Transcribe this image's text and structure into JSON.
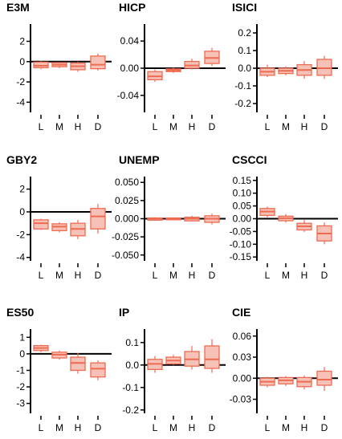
{
  "colors": {
    "box_fill": "#f6c2b8",
    "box_edge": "#ee6b50",
    "median": "#ee6b50",
    "zero_line": "#000000",
    "axis": "#000000"
  },
  "chart_data": [
    {
      "type": "box",
      "title": "E3M",
      "categories": [
        "L",
        "M",
        "H",
        "D"
      ],
      "yticks": [
        "2",
        "0",
        "-2",
        "-4"
      ],
      "yticks_values": [
        2,
        0,
        -2,
        -4
      ],
      "ylim": [
        -5,
        3.7
      ],
      "boxes": [
        {
          "whisker_low": -0.75,
          "q1": -0.6,
          "median": -0.4,
          "q3": -0.05,
          "whisker_high": 0.05
        },
        {
          "whisker_low": -0.65,
          "q1": -0.5,
          "median": -0.3,
          "q3": -0.1,
          "whisker_high": -0.05
        },
        {
          "whisker_low": -1.0,
          "q1": -0.8,
          "median": -0.45,
          "q3": -0.15,
          "whisker_high": 0.0
        },
        {
          "whisker_low": -0.9,
          "q1": -0.7,
          "median": -0.3,
          "q3": 0.55,
          "whisker_high": 0.8
        }
      ]
    },
    {
      "type": "box",
      "title": "HICP",
      "categories": [
        "L",
        "M",
        "H",
        "D"
      ],
      "yticks": [
        "0.04",
        "0.00",
        "-0.04"
      ],
      "yticks_values": [
        0.04,
        0,
        -0.04
      ],
      "ylim": [
        -0.065,
        0.065
      ],
      "boxes": [
        {
          "whisker_low": -0.02,
          "q1": -0.017,
          "median": -0.012,
          "q3": -0.005,
          "whisker_high": -0.002
        },
        {
          "whisker_low": -0.007,
          "q1": -0.005,
          "median": -0.003,
          "q3": -0.001,
          "whisker_high": 0.001
        },
        {
          "whisker_low": -0.002,
          "q1": 0.0,
          "median": 0.004,
          "q3": 0.01,
          "whisker_high": 0.014
        },
        {
          "whisker_low": 0.003,
          "q1": 0.007,
          "median": 0.015,
          "q3": 0.025,
          "whisker_high": 0.03
        }
      ]
    },
    {
      "type": "box",
      "title": "ISICI",
      "categories": [
        "L",
        "M",
        "H",
        "D"
      ],
      "yticks": [
        "0.2",
        "0.1",
        "0.0",
        "-0.1",
        "-0.2"
      ],
      "yticks_values": [
        0.2,
        0.1,
        0,
        -0.1,
        -0.2
      ],
      "ylim": [
        -0.25,
        0.25
      ],
      "boxes": [
        {
          "whisker_low": -0.05,
          "q1": -0.04,
          "median": -0.02,
          "q3": 0.0,
          "whisker_high": 0.02
        },
        {
          "whisker_low": -0.04,
          "q1": -0.03,
          "median": -0.015,
          "q3": 0.0,
          "whisker_high": 0.01
        },
        {
          "whisker_low": -0.06,
          "q1": -0.04,
          "median": -0.01,
          "q3": 0.02,
          "whisker_high": 0.04
        },
        {
          "whisker_low": -0.06,
          "q1": -0.04,
          "median": 0.0,
          "q3": 0.05,
          "whisker_high": 0.07
        }
      ]
    },
    {
      "type": "box",
      "title": "GBY2",
      "categories": [
        "L",
        "M",
        "H",
        "D"
      ],
      "yticks": [
        "2",
        "0",
        "-2",
        "-4"
      ],
      "yticks_values": [
        2,
        0,
        -2,
        -4
      ],
      "ylim": [
        -4.3,
        3.1
      ],
      "boxes": [
        {
          "whisker_low": -1.6,
          "q1": -1.5,
          "median": -1.0,
          "q3": -0.7,
          "whisker_high": -0.6
        },
        {
          "whisker_low": -1.8,
          "q1": -1.65,
          "median": -1.3,
          "q3": -1.05,
          "whisker_high": -0.9
        },
        {
          "whisker_low": -2.4,
          "q1": -2.1,
          "median": -1.5,
          "q3": -1.0,
          "whisker_high": -0.7
        },
        {
          "whisker_low": -1.9,
          "q1": -1.5,
          "median": -0.4,
          "q3": 0.3,
          "whisker_high": 0.7
        }
      ]
    },
    {
      "type": "box",
      "title": "UNEMP",
      "categories": [
        "L",
        "M",
        "H",
        "D"
      ],
      "yticks": [
        "0.050",
        "0.025",
        "0.000",
        "-0.025",
        "-0.050"
      ],
      "yticks_values": [
        0.05,
        0.025,
        0,
        -0.025,
        -0.05
      ],
      "ylim": [
        -0.058,
        0.058
      ],
      "boxes": [
        {
          "whisker_low": -0.003,
          "q1": -0.002,
          "median": 0.0,
          "q3": 0.001,
          "whisker_high": 0.002
        },
        {
          "whisker_low": -0.002,
          "q1": -0.0015,
          "median": 0.0,
          "q3": 0.001,
          "whisker_high": 0.002
        },
        {
          "whisker_low": -0.004,
          "q1": -0.003,
          "median": 0.0,
          "q3": 0.002,
          "whisker_high": 0.004
        },
        {
          "whisker_low": -0.008,
          "q1": -0.005,
          "median": 0.0,
          "q3": 0.004,
          "whisker_high": 0.007
        }
      ]
    },
    {
      "type": "box",
      "title": "CSCCI",
      "categories": [
        "L",
        "M",
        "H",
        "D"
      ],
      "yticks": [
        "0.15",
        "0.10",
        "0.05",
        "0.00",
        "-0.05",
        "-0.10",
        "-0.15"
      ],
      "yticks_values": [
        0.15,
        0.1,
        0.05,
        0,
        -0.05,
        -0.1,
        -0.15
      ],
      "ylim": [
        -0.165,
        0.165
      ],
      "boxes": [
        {
          "whisker_low": 0.005,
          "q1": 0.013,
          "median": 0.028,
          "q3": 0.04,
          "whisker_high": 0.047
        },
        {
          "whisker_low": -0.015,
          "q1": -0.008,
          "median": 0.002,
          "q3": 0.01,
          "whisker_high": 0.018
        },
        {
          "whisker_low": -0.052,
          "q1": -0.044,
          "median": -0.03,
          "q3": -0.018,
          "whisker_high": -0.005
        },
        {
          "whisker_low": -0.1,
          "q1": -0.087,
          "median": -0.058,
          "q3": -0.028,
          "whisker_high": -0.015
        }
      ]
    },
    {
      "type": "box",
      "title": "ES50",
      "categories": [
        "L",
        "M",
        "H",
        "D"
      ],
      "yticks": [
        "1",
        "0",
        "-1",
        "-2",
        "-3"
      ],
      "yticks_values": [
        1,
        0,
        -1,
        -2,
        -3
      ],
      "ylim": [
        -3.6,
        1.5
      ],
      "boxes": [
        {
          "whisker_low": 0.1,
          "q1": 0.2,
          "median": 0.35,
          "q3": 0.5,
          "whisker_high": 0.55
        },
        {
          "whisker_low": -0.35,
          "q1": -0.25,
          "median": -0.05,
          "q3": 0.1,
          "whisker_high": 0.2
        },
        {
          "whisker_low": -1.2,
          "q1": -1.0,
          "median": -0.55,
          "q3": -0.2,
          "whisker_high": 0.05
        },
        {
          "whisker_low": -1.6,
          "q1": -1.4,
          "median": -0.9,
          "q3": -0.55,
          "whisker_high": -0.4
        }
      ]
    },
    {
      "type": "box",
      "title": "IP",
      "categories": [
        "L",
        "M",
        "H",
        "D"
      ],
      "yticks": [
        "0.1",
        "0.0",
        "-0.1",
        "-0.2"
      ],
      "yticks_values": [
        0.1,
        0,
        -0.1,
        -0.2
      ],
      "ylim": [
        -0.215,
        0.16
      ],
      "boxes": [
        {
          "whisker_low": -0.035,
          "q1": -0.02,
          "median": 0.005,
          "q3": 0.025,
          "whisker_high": 0.04
        },
        {
          "whisker_low": 0.0,
          "q1": 0.005,
          "median": 0.02,
          "q3": 0.035,
          "whisker_high": 0.045
        },
        {
          "whisker_low": -0.02,
          "q1": -0.005,
          "median": 0.025,
          "q3": 0.06,
          "whisker_high": 0.085
        },
        {
          "whisker_low": -0.035,
          "q1": -0.015,
          "median": 0.025,
          "q3": 0.085,
          "whisker_high": 0.115
        }
      ]
    },
    {
      "type": "box",
      "title": "CIE",
      "categories": [
        "L",
        "M",
        "H",
        "D"
      ],
      "yticks": [
        "0.06",
        "0.03",
        "0.00",
        "-0.03"
      ],
      "yticks_values": [
        0.06,
        0.03,
        0,
        -0.03
      ],
      "ylim": [
        -0.05,
        0.07
      ],
      "boxes": [
        {
          "whisker_low": -0.013,
          "q1": -0.01,
          "median": -0.005,
          "q3": 0.0,
          "whisker_high": 0.002
        },
        {
          "whisker_low": -0.011,
          "q1": -0.008,
          "median": -0.003,
          "q3": 0.001,
          "whisker_high": 0.003
        },
        {
          "whisker_low": -0.016,
          "q1": -0.012,
          "median": -0.005,
          "q3": 0.001,
          "whisker_high": 0.004
        },
        {
          "whisker_low": -0.018,
          "q1": -0.01,
          "median": -0.002,
          "q3": 0.01,
          "whisker_high": 0.016
        }
      ]
    }
  ]
}
